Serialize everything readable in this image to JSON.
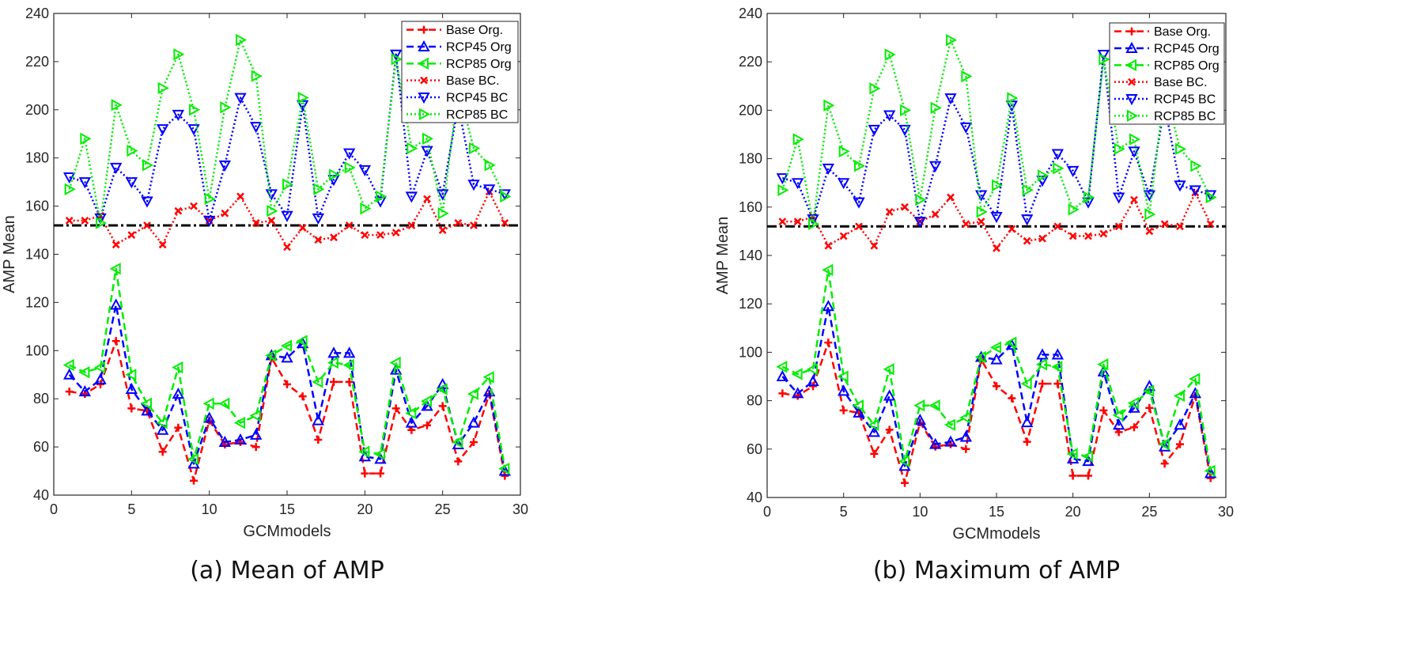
{
  "chart_data": [
    {
      "type": "line",
      "caption": "(a) Mean of AMP",
      "xlabel": "GCMmodels",
      "ylabel": "AMP Mean",
      "xlim": [
        0,
        30
      ],
      "ylim": [
        40,
        240
      ],
      "xticks": [
        0,
        5,
        10,
        15,
        20,
        25,
        30
      ],
      "yticks": [
        40,
        60,
        80,
        100,
        120,
        140,
        160,
        180,
        200,
        220,
        240
      ],
      "grid": false,
      "legend_position": "top-right",
      "x": [
        1,
        2,
        3,
        4,
        5,
        6,
        7,
        8,
        9,
        10,
        11,
        12,
        13,
        14,
        15,
        16,
        17,
        18,
        19,
        20,
        21,
        22,
        23,
        24,
        25,
        26,
        27,
        28,
        29
      ],
      "reference_line": 152,
      "series": [
        {
          "name": "Base Org.",
          "color": "#ff0000",
          "dash": "dashed",
          "marker": "plus",
          "values": [
            83,
            82,
            86,
            104,
            76,
            75,
            58,
            68,
            46,
            71,
            61,
            62,
            60,
            97,
            86,
            81,
            63,
            87,
            87,
            49,
            49,
            76,
            67,
            69,
            77,
            54,
            62,
            82,
            48
          ]
        },
        {
          "name": "RCP45 Org",
          "color": "#0000ff",
          "dash": "dashed",
          "marker": "triangle-up",
          "values": [
            90,
            83,
            88,
            119,
            84,
            75,
            67,
            82,
            53,
            72,
            62,
            63,
            65,
            98,
            97,
            103,
            71,
            99,
            99,
            56,
            55,
            92,
            70,
            77,
            86,
            61,
            70,
            83,
            50
          ]
        },
        {
          "name": "RCP85 Org",
          "color": "#00ee00",
          "dash": "dashed",
          "marker": "triangle-left",
          "values": [
            94,
            91,
            93,
            134,
            90,
            78,
            70,
            93,
            55,
            78,
            78,
            70,
            73,
            98,
            102,
            104,
            87,
            95,
            94,
            58,
            57,
            95,
            74,
            79,
            84,
            62,
            82,
            89,
            51
          ]
        },
        {
          "name": "Base BC.",
          "color": "#ff0000",
          "dash": "dotted",
          "marker": "x",
          "values": [
            154,
            154,
            156,
            144,
            148,
            152,
            144,
            158,
            160,
            154,
            157,
            164,
            153,
            154,
            143,
            151,
            146,
            147,
            152,
            148,
            148,
            149,
            152,
            163,
            150,
            153,
            152,
            166,
            153
          ]
        },
        {
          "name": "RCP45 BC",
          "color": "#0000ff",
          "dash": "dotted",
          "marker": "triangle-down",
          "values": [
            172,
            170,
            155,
            176,
            170,
            162,
            192,
            198,
            192,
            154,
            177,
            205,
            193,
            165,
            156,
            202,
            155,
            171,
            182,
            175,
            162,
            223,
            164,
            183,
            165,
            202,
            169,
            167,
            165
          ]
        },
        {
          "name": "RCP85 BC",
          "color": "#00ee00",
          "dash": "dotted",
          "marker": "triangle-right",
          "values": [
            167,
            188,
            153,
            202,
            183,
            177,
            209,
            223,
            200,
            163,
            201,
            229,
            214,
            158,
            169,
            205,
            167,
            173,
            176,
            159,
            164,
            221,
            184,
            188,
            157,
            209,
            184,
            177,
            164
          ]
        }
      ]
    },
    {
      "type": "line",
      "caption": "(b) Maximum of AMP",
      "xlabel": "GCMmodels",
      "ylabel": "AMP Mean",
      "xlim": [
        0,
        30
      ],
      "ylim": [
        40,
        240
      ],
      "xticks": [
        0,
        5,
        10,
        15,
        20,
        25,
        30
      ],
      "yticks": [
        40,
        60,
        80,
        100,
        120,
        140,
        160,
        180,
        200,
        220,
        240
      ],
      "grid": false,
      "legend_position": "top-right",
      "x": [
        1,
        2,
        3,
        4,
        5,
        6,
        7,
        8,
        9,
        10,
        11,
        12,
        13,
        14,
        15,
        16,
        17,
        18,
        19,
        20,
        21,
        22,
        23,
        24,
        25,
        26,
        27,
        28,
        29
      ],
      "reference_line": 152,
      "series": [
        {
          "name": "Base Org.",
          "color": "#ff0000",
          "dash": "dashed",
          "marker": "plus",
          "values": [
            83,
            82,
            86,
            104,
            76,
            75,
            58,
            68,
            46,
            71,
            61,
            62,
            60,
            97,
            86,
            81,
            63,
            87,
            87,
            49,
            49,
            76,
            67,
            69,
            77,
            54,
            62,
            82,
            48
          ]
        },
        {
          "name": "RCP45 Org",
          "color": "#0000ff",
          "dash": "dashed",
          "marker": "triangle-up",
          "values": [
            90,
            83,
            88,
            119,
            84,
            75,
            67,
            82,
            53,
            72,
            62,
            63,
            65,
            98,
            97,
            103,
            71,
            99,
            99,
            56,
            55,
            92,
            70,
            77,
            86,
            61,
            70,
            83,
            50
          ]
        },
        {
          "name": "RCP85 Org",
          "color": "#00ee00",
          "dash": "dashed",
          "marker": "triangle-left",
          "values": [
            94,
            91,
            93,
            134,
            90,
            78,
            70,
            93,
            55,
            78,
            78,
            70,
            73,
            98,
            102,
            104,
            87,
            95,
            94,
            58,
            57,
            95,
            74,
            79,
            84,
            62,
            82,
            89,
            51
          ]
        },
        {
          "name": "Base BC.",
          "color": "#ff0000",
          "dash": "dotted",
          "marker": "x",
          "values": [
            154,
            154,
            156,
            144,
            148,
            152,
            144,
            158,
            160,
            154,
            157,
            164,
            153,
            154,
            143,
            151,
            146,
            147,
            152,
            148,
            148,
            149,
            152,
            163,
            150,
            153,
            152,
            166,
            153
          ]
        },
        {
          "name": "RCP45 BC",
          "color": "#0000ff",
          "dash": "dotted",
          "marker": "triangle-down",
          "values": [
            172,
            170,
            155,
            176,
            170,
            162,
            192,
            198,
            192,
            154,
            177,
            205,
            193,
            165,
            156,
            202,
            155,
            171,
            182,
            175,
            162,
            223,
            164,
            183,
            165,
            202,
            169,
            167,
            165
          ]
        },
        {
          "name": "RCP85 BC",
          "color": "#00ee00",
          "dash": "dotted",
          "marker": "triangle-right",
          "values": [
            167,
            188,
            153,
            202,
            183,
            177,
            209,
            223,
            200,
            163,
            201,
            229,
            214,
            158,
            169,
            205,
            167,
            173,
            176,
            159,
            164,
            221,
            184,
            188,
            157,
            209,
            184,
            177,
            164
          ]
        }
      ]
    }
  ]
}
